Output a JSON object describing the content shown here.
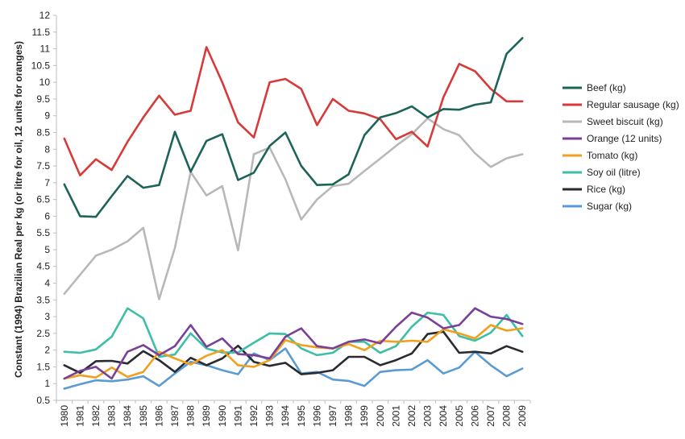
{
  "chart_data": {
    "type": "line",
    "title": "",
    "xlabel": "",
    "ylabel": "Constant (1994) Brazilian Real per kg (or litre for oil, 12 units for oranges)",
    "ylim": [
      0.5,
      12
    ],
    "yticks": [
      0.5,
      1,
      1.5,
      2,
      2.5,
      3,
      3.5,
      4,
      4.5,
      5,
      5.5,
      6,
      6.5,
      7,
      7.5,
      8,
      8.5,
      9,
      9.5,
      10,
      10.5,
      11,
      11.5,
      12
    ],
    "ytick_labels": [
      "0.5",
      "1",
      "1.5",
      "2",
      "2.5",
      "3",
      "3.5",
      "4",
      "4.5",
      "5",
      "5.5",
      "6",
      "6.5",
      "7",
      "7.5",
      "8",
      "8.5",
      "9",
      "9.5",
      "10",
      "10.5",
      "11",
      "11.5",
      "12"
    ],
    "grid": false,
    "legend_position": "right",
    "x": [
      "1980",
      "1981",
      "1982",
      "1983",
      "1984",
      "1985",
      "1986",
      "1987",
      "1988",
      "1989",
      "1990",
      "1991",
      "1992",
      "1993",
      "1994",
      "1995",
      "1996",
      "1997",
      "1998",
      "1999",
      "2000",
      "2001",
      "2002",
      "2003",
      "2004",
      "2005",
      "2006",
      "2007",
      "2008",
      "2009"
    ],
    "series": [
      {
        "name": "Beef (kg)",
        "color": "#1d6458",
        "values": [
          6.95,
          6.0,
          5.98,
          6.6,
          7.2,
          6.85,
          6.93,
          8.52,
          7.33,
          8.25,
          8.45,
          7.08,
          7.3,
          8.1,
          8.5,
          7.5,
          6.93,
          6.95,
          7.25,
          8.42,
          8.95,
          9.08,
          9.28,
          8.95,
          9.2,
          9.18,
          9.33,
          9.4,
          10.85,
          11.32
        ]
      },
      {
        "name": "Regular sausage (kg)",
        "color": "#d83a3a",
        "values": [
          8.32,
          7.22,
          7.7,
          7.38,
          8.22,
          8.95,
          9.6,
          9.03,
          9.15,
          11.05,
          10.0,
          8.8,
          8.35,
          10.0,
          10.1,
          9.8,
          8.72,
          9.5,
          9.15,
          9.07,
          8.9,
          8.3,
          8.52,
          8.08,
          9.55,
          10.55,
          10.33,
          9.8,
          9.43,
          9.43
        ]
      },
      {
        "name": "Sweet biscuit (kg)",
        "color": "#b8b8b8",
        "values": [
          3.68,
          4.25,
          4.82,
          5.0,
          5.25,
          5.65,
          3.52,
          5.05,
          7.32,
          6.62,
          6.9,
          4.98,
          7.85,
          8.05,
          7.1,
          5.9,
          6.5,
          6.9,
          6.97,
          7.35,
          7.72,
          8.1,
          8.45,
          8.92,
          8.6,
          8.42,
          7.88,
          7.47,
          7.73,
          7.85
        ]
      },
      {
        "name": "Orange (12 units)",
        "color": "#7a3f96",
        "values": [
          1.15,
          1.38,
          1.5,
          1.15,
          1.95,
          2.15,
          1.85,
          2.12,
          2.75,
          2.1,
          2.35,
          1.88,
          1.85,
          1.75,
          2.4,
          2.65,
          2.12,
          2.05,
          2.25,
          2.32,
          2.2,
          2.7,
          3.12,
          2.97,
          2.65,
          2.75,
          3.25,
          3.0,
          2.93,
          2.78
        ]
      },
      {
        "name": "Tomato (kg)",
        "color": "#f0a01c",
        "values": [
          1.15,
          1.25,
          1.18,
          1.48,
          1.2,
          1.35,
          1.95,
          1.75,
          1.57,
          1.83,
          2.0,
          1.55,
          1.5,
          1.7,
          2.3,
          2.15,
          2.08,
          2.05,
          2.18,
          2.0,
          2.28,
          2.25,
          2.28,
          2.25,
          2.62,
          2.5,
          2.35,
          2.75,
          2.58,
          2.65
        ]
      },
      {
        "name": "Soy oil (litre)",
        "color": "#3dbea6",
        "values": [
          1.95,
          1.92,
          2.02,
          2.4,
          3.25,
          2.95,
          1.8,
          1.87,
          2.5,
          2.05,
          1.93,
          1.93,
          2.22,
          2.5,
          2.48,
          2.05,
          1.85,
          1.92,
          2.25,
          2.25,
          1.92,
          2.12,
          2.7,
          3.12,
          3.05,
          2.42,
          2.28,
          2.52,
          3.05,
          2.42
        ]
      },
      {
        "name": "Rice (kg)",
        "color": "#2a2a32",
        "values": [
          1.55,
          1.32,
          1.67,
          1.68,
          1.6,
          1.97,
          1.7,
          1.35,
          1.77,
          1.55,
          1.75,
          2.13,
          1.65,
          1.53,
          1.62,
          1.28,
          1.32,
          1.4,
          1.8,
          1.8,
          1.55,
          1.7,
          1.9,
          2.48,
          2.55,
          1.92,
          1.95,
          1.9,
          2.12,
          1.95
        ]
      },
      {
        "name": "Sugar (kg)",
        "color": "#5b9bd5",
        "values": [
          0.85,
          0.98,
          1.1,
          1.07,
          1.12,
          1.22,
          0.93,
          1.3,
          1.65,
          1.55,
          1.4,
          1.28,
          1.9,
          1.7,
          2.05,
          1.3,
          1.35,
          1.12,
          1.08,
          0.93,
          1.35,
          1.4,
          1.42,
          1.7,
          1.3,
          1.48,
          1.95,
          1.55,
          1.22,
          1.45
        ]
      }
    ]
  }
}
